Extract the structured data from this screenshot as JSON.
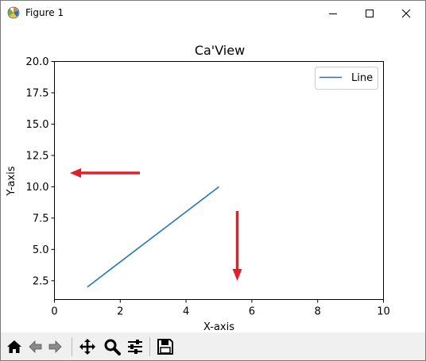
{
  "window": {
    "title": "Figure 1"
  },
  "toolbar": {
    "buttons": [
      "home-icon",
      "back-icon",
      "forward-icon",
      "pan-icon",
      "zoom-icon",
      "configure-subplots-icon",
      "save-icon"
    ]
  },
  "annotations": {
    "arrow_color": "#e0202a"
  },
  "chart_data": {
    "type": "line",
    "title": "Ca'View",
    "xlabel": "X-axis",
    "ylabel": "Y-axis",
    "xlim": [
      0,
      10
    ],
    "ylim": [
      1.0,
      20.0
    ],
    "xticks": [
      "0",
      "2",
      "4",
      "6",
      "8",
      "10"
    ],
    "yticks": [
      "2.5",
      "5.0",
      "7.5",
      "10.0",
      "12.5",
      "15.0",
      "17.5",
      "20.0"
    ],
    "legend_position": "top-right",
    "grid": false,
    "series": [
      {
        "name": "Line",
        "color": "#1f77b4",
        "x": [
          1,
          5
        ],
        "y": [
          2,
          10
        ]
      }
    ]
  }
}
